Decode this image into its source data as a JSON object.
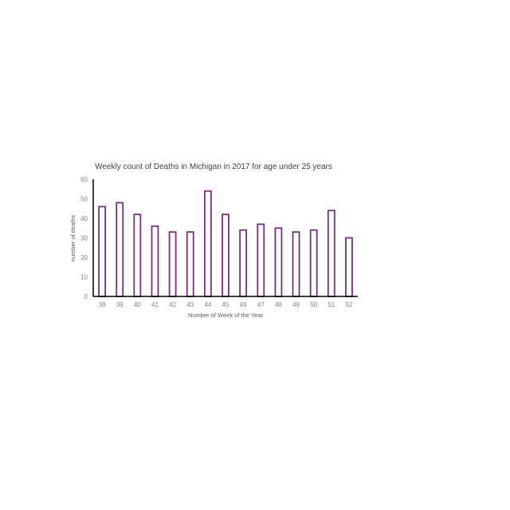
{
  "chart_data": {
    "type": "bar",
    "title": "Weekly count of Deaths in Michigan in 2017 for age under 25 years",
    "xlabel": "Number of Week of the Year",
    "ylabel": "number of deaths",
    "categories": [
      "38",
      "39",
      "40",
      "41",
      "42",
      "43",
      "44",
      "45",
      "46",
      "47",
      "48",
      "49",
      "50",
      "51",
      "52"
    ],
    "values": [
      46,
      48,
      42,
      36,
      33,
      33,
      54,
      42,
      34,
      37,
      35,
      33,
      34,
      44,
      30
    ],
    "ylim": [
      0,
      60
    ],
    "yticks": [
      "0",
      "10",
      "20",
      "30",
      "40",
      "50",
      "60"
    ],
    "grid": false,
    "legend": "none",
    "bar_style": "outline",
    "colors": {
      "bar_stroke": "#7b2c83",
      "bar_fill": "#ffffff",
      "axis": "#000000"
    }
  }
}
